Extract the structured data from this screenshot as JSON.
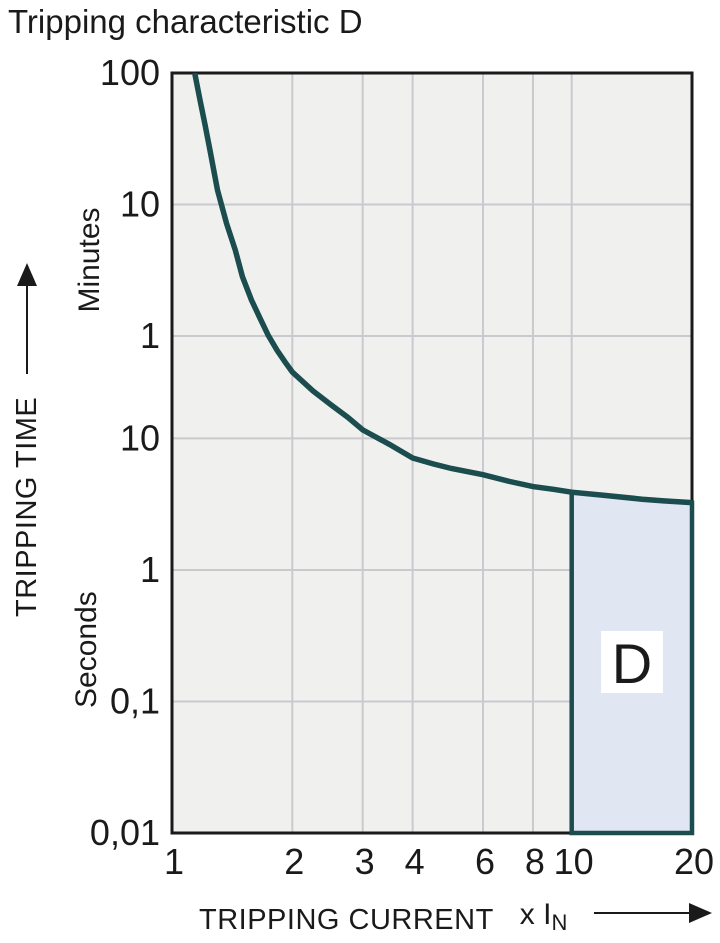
{
  "colors": {
    "curve": "#1b4c4e",
    "region_fill": "#e1e6f3",
    "region_label_bg": "#ffffff",
    "plot_bg": "#f0f0ee",
    "grid": "#c9cacd",
    "axis": "#1a1a1a",
    "text": "#1a1a1a"
  },
  "chart_data": {
    "type": "line",
    "title": "Tripping characteristic D",
    "xlabel": "TRIPPING CURRENT",
    "x_unit_main": "x I",
    "x_unit_sub": "N",
    "ylabel": "TRIPPING TIME",
    "y_unit_upper": "Minutes",
    "y_unit_lower": "Seconds",
    "x_scale": "log",
    "y_scale": "log",
    "x_range": [
      1,
      20
    ],
    "y_range_seconds": [
      0.01,
      6000
    ],
    "grid": true,
    "x_ticks": [
      {
        "label": "1",
        "v": 1
      },
      {
        "label": "2",
        "v": 2
      },
      {
        "label": "3",
        "v": 3
      },
      {
        "label": "4",
        "v": 4
      },
      {
        "label": "6",
        "v": 6
      },
      {
        "label": "8",
        "v": 8
      },
      {
        "label": "10",
        "v": 10
      },
      {
        "label": "20",
        "v": 20
      }
    ],
    "y_ticks": [
      {
        "label": "100",
        "unit": "min",
        "seconds": 6000
      },
      {
        "label": "10",
        "unit": "min",
        "seconds": 600
      },
      {
        "label": "1",
        "unit": "min",
        "seconds": 60
      },
      {
        "label": "10",
        "unit": "s",
        "seconds": 10
      },
      {
        "label": "1",
        "unit": "s",
        "seconds": 1
      },
      {
        "label": "0,1",
        "unit": "s",
        "seconds": 0.1
      },
      {
        "label": "0,01",
        "unit": "s",
        "seconds": 0.01
      }
    ],
    "series": [
      {
        "name": "thermal-trip-curve",
        "points_multiple_seconds": [
          [
            1.14,
            6000
          ],
          [
            1.175,
            3740
          ],
          [
            1.21,
            2410
          ],
          [
            1.245,
            1550
          ],
          [
            1.3,
            773
          ],
          [
            1.37,
            430
          ],
          [
            1.44,
            270
          ],
          [
            1.5,
            170
          ],
          [
            1.58,
            113
          ],
          [
            1.66,
            82
          ],
          [
            1.74,
            61
          ],
          [
            1.83,
            47
          ],
          [
            1.92,
            38
          ],
          [
            2.0,
            32
          ],
          [
            2.25,
            23
          ],
          [
            2.5,
            18
          ],
          [
            2.75,
            14.5
          ],
          [
            3.0,
            11.6
          ],
          [
            3.5,
            9.0
          ],
          [
            4.0,
            7.1
          ],
          [
            4.5,
            6.4
          ],
          [
            5.0,
            5.9
          ],
          [
            6.0,
            5.3
          ],
          [
            7.0,
            4.7
          ],
          [
            8.0,
            4.3
          ],
          [
            9.0,
            4.1
          ],
          [
            10.0,
            3.9
          ],
          [
            12.0,
            3.7
          ],
          [
            15.0,
            3.45
          ],
          [
            17.0,
            3.35
          ],
          [
            20.0,
            3.25
          ]
        ]
      }
    ],
    "region": {
      "label": "D",
      "v_range": [
        10,
        20
      ],
      "t_bottom": 0.01
    }
  }
}
